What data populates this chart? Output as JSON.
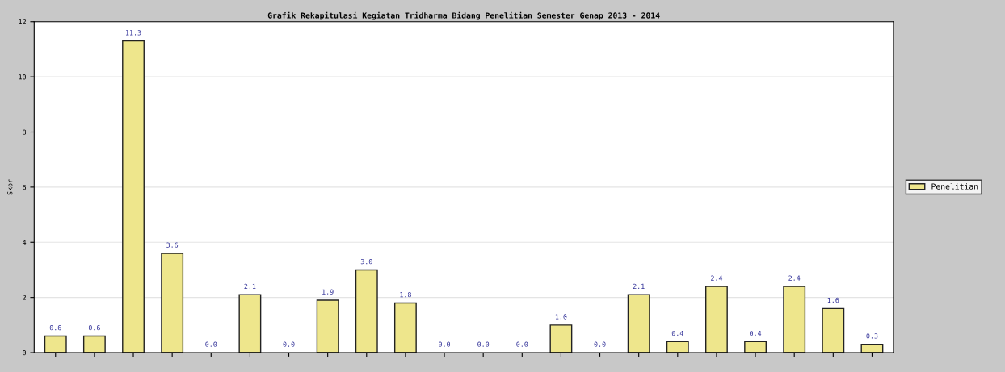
{
  "chart_data": {
    "type": "bar",
    "title": "Grafik Rekapitulasi Kegiatan Tridharma Bidang Penelitian Semester Genap 2013 - 2014",
    "ylabel": "Skor",
    "categories": [
      null,
      null,
      null,
      null,
      null,
      null,
      null,
      null,
      null,
      null,
      null,
      null,
      null,
      null,
      null,
      null,
      null,
      null,
      null,
      null,
      null,
      null
    ],
    "series": [
      {
        "name": "Penelitian",
        "color": "#eee68c",
        "values": [
          0.6,
          0.6,
          11.3,
          3.6,
          0.0,
          2.1,
          0.0,
          1.9,
          3.0,
          1.8,
          0.0,
          0.0,
          0.0,
          1.0,
          0.0,
          2.1,
          0.4,
          2.4,
          0.4,
          2.4,
          1.6,
          0.3
        ],
        "value_labels": [
          "0.6",
          "0.6",
          "11.3",
          "3.6",
          "0.0",
          "2.1",
          "0.0",
          "1.9",
          "3.0",
          "1.8",
          "0.0",
          "0.0",
          "0.0",
          "1.0",
          "0.0",
          "2.1",
          "0.4",
          "2.4",
          "0.4",
          "2.4",
          "1.6",
          "0.3"
        ]
      }
    ],
    "ylim": [
      0,
      12
    ],
    "yticks": [
      0,
      2,
      4,
      6,
      8,
      10,
      12
    ],
    "grid": "y",
    "legend": "right"
  }
}
